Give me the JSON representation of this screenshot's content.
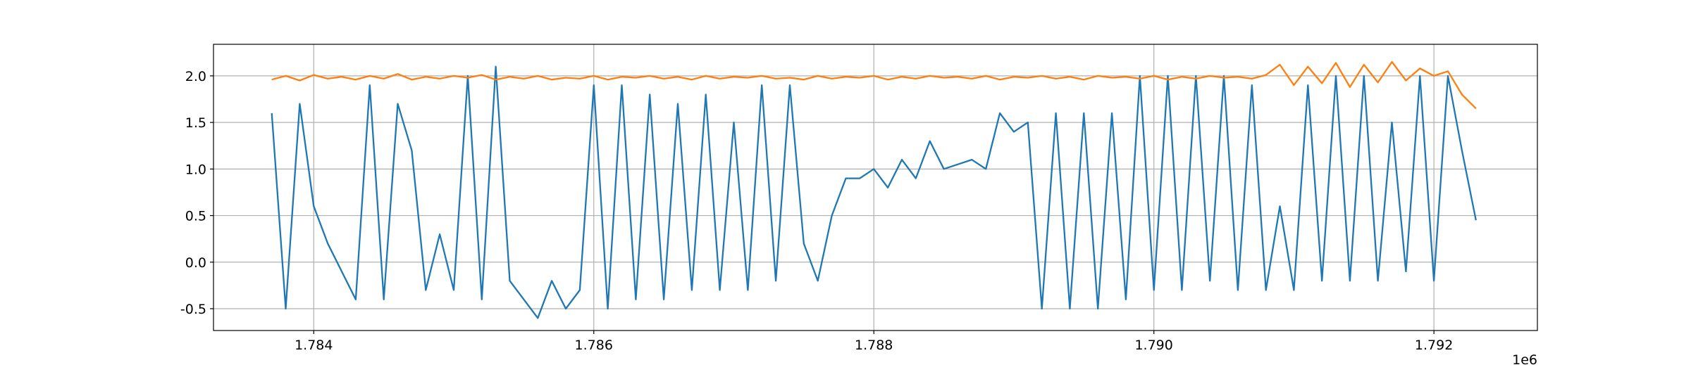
{
  "chart_data": {
    "type": "line",
    "x_offset_label": "1e6",
    "x": [
      1783700,
      1783800,
      1783900,
      1784000,
      1784100,
      1784200,
      1784300,
      1784400,
      1784500,
      1784600,
      1784700,
      1784800,
      1784900,
      1785000,
      1785100,
      1785200,
      1785300,
      1785400,
      1785500,
      1785600,
      1785700,
      1785800,
      1785900,
      1786000,
      1786100,
      1786200,
      1786300,
      1786400,
      1786500,
      1786600,
      1786700,
      1786800,
      1786900,
      1787000,
      1787100,
      1787200,
      1787300,
      1787400,
      1787500,
      1787600,
      1787700,
      1787800,
      1787900,
      1788000,
      1788100,
      1788200,
      1788300,
      1788400,
      1788500,
      1788600,
      1788700,
      1788800,
      1788900,
      1789000,
      1789100,
      1789200,
      1789300,
      1789400,
      1789500,
      1789600,
      1789700,
      1789800,
      1789900,
      1790000,
      1790100,
      1790200,
      1790300,
      1790400,
      1790500,
      1790600,
      1790700,
      1790800,
      1790900,
      1791000,
      1791100,
      1791200,
      1791300,
      1791400,
      1791500,
      1791600,
      1791700,
      1791800,
      1791900,
      1792000,
      1792100,
      1792200,
      1792300
    ],
    "series": [
      {
        "color": "#1f77b4",
        "values": [
          1.6,
          -0.5,
          1.7,
          0.6,
          0.2,
          -0.1,
          -0.4,
          1.9,
          -0.4,
          1.7,
          1.2,
          -0.3,
          0.3,
          -0.3,
          2.0,
          -0.4,
          2.1,
          -0.2,
          -0.4,
          -0.6,
          -0.2,
          -0.5,
          -0.3,
          1.9,
          -0.5,
          1.9,
          -0.4,
          1.8,
          -0.4,
          1.7,
          -0.3,
          1.8,
          -0.3,
          1.5,
          -0.3,
          1.9,
          -0.2,
          1.9,
          0.2,
          -0.2,
          0.5,
          0.9,
          0.9,
          1.0,
          0.8,
          1.1,
          0.9,
          1.3,
          1.0,
          1.05,
          1.1,
          1.0,
          1.6,
          1.4,
          1.5,
          -0.5,
          1.6,
          -0.5,
          1.6,
          -0.5,
          1.6,
          -0.4,
          2.0,
          -0.3,
          2.0,
          -0.3,
          2.0,
          -0.2,
          2.0,
          -0.3,
          1.9,
          -0.3,
          0.6,
          -0.3,
          1.9,
          -0.2,
          2.0,
          -0.2,
          2.0,
          -0.2,
          1.5,
          -0.1,
          2.0,
          -0.2,
          2.0,
          1.2,
          0.45
        ]
      },
      {
        "color": "#ff7f0e",
        "values": [
          1.96,
          2.0,
          1.95,
          2.01,
          1.97,
          1.99,
          1.96,
          2.0,
          1.97,
          2.02,
          1.96,
          1.99,
          1.97,
          2.0,
          1.98,
          2.01,
          1.96,
          1.99,
          1.97,
          2.0,
          1.96,
          1.98,
          1.97,
          2.0,
          1.96,
          1.99,
          1.98,
          2.0,
          1.97,
          1.99,
          1.96,
          2.0,
          1.97,
          1.99,
          1.98,
          2.0,
          1.97,
          1.98,
          1.96,
          2.0,
          1.97,
          1.99,
          1.98,
          2.0,
          1.96,
          1.99,
          1.97,
          2.0,
          1.98,
          1.99,
          1.97,
          2.0,
          1.96,
          1.99,
          1.98,
          2.0,
          1.97,
          1.99,
          1.96,
          2.0,
          1.98,
          1.99,
          1.97,
          2.0,
          1.96,
          1.99,
          1.97,
          2.0,
          1.98,
          1.99,
          1.97,
          2.01,
          2.12,
          1.9,
          2.1,
          1.92,
          2.14,
          1.88,
          2.12,
          1.93,
          2.15,
          1.95,
          2.08,
          2.0,
          2.05,
          1.8,
          1.65
        ]
      }
    ],
    "xlim": [
      1783284,
      1792739
    ],
    "ylim": [
      -0.734,
      2.339
    ],
    "xticks": [
      {
        "value": 1784000,
        "label": "1.784"
      },
      {
        "value": 1786000,
        "label": "1.786"
      },
      {
        "value": 1788000,
        "label": "1.788"
      },
      {
        "value": 1790000,
        "label": "1.790"
      },
      {
        "value": 1792000,
        "label": "1.792"
      }
    ],
    "yticks": [
      -0.5,
      {
        "value": 0,
        "label": "0.0"
      },
      0.5,
      {
        "value": 1,
        "label": "1.0"
      },
      1.5,
      {
        "value": 2,
        "label": "2.0"
      }
    ],
    "grid": true
  }
}
